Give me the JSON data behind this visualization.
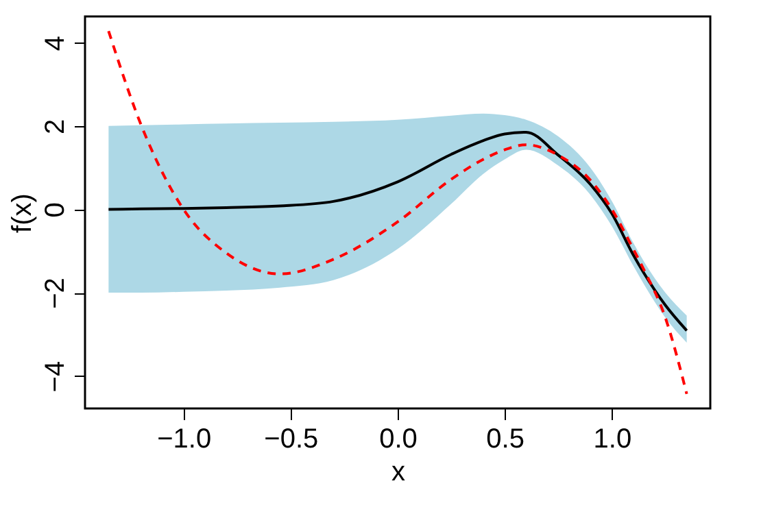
{
  "chart_data": {
    "type": "line",
    "xlabel": "x",
    "ylabel": "f(x)",
    "x": [
      -1.35,
      -1.2,
      -1.0,
      -0.8,
      -0.55,
      -0.3,
      0,
      0.25,
      0.4,
      0.5,
      0.6,
      0.75,
      0.9,
      1.0,
      1.1,
      1.15,
      1.25,
      1.35
    ],
    "series": [
      {
        "color": "#000000",
        "line_style": "solid",
        "values": [
          0,
          0.01,
          0.02,
          0.04,
          0.08,
          0.19,
          0.66,
          1.32,
          1.65,
          1.81,
          1.85,
          1.3,
          0.6,
          -0.1,
          -1.09,
          -1.53,
          -2.3,
          -2.91
        ],
        "lower": [
          -2.0,
          -2.0,
          -1.98,
          -1.95,
          -1.88,
          -1.7,
          -0.95,
          0.13,
          0.85,
          1.2,
          1.43,
          1.05,
          0.35,
          -0.4,
          -1.35,
          -1.8,
          -2.6,
          -3.2
        ],
        "upper": [
          2.0,
          2.02,
          2.04,
          2.06,
          2.08,
          2.1,
          2.15,
          2.25,
          2.3,
          2.26,
          2.15,
          1.75,
          1.0,
          0.2,
          -0.8,
          -1.25,
          -2.0,
          -2.55
        ]
      },
      {
        "color": "#ff0000",
        "line_style": "dashed",
        "values": [
          4.28,
          2.05,
          0,
          -1.05,
          -1.55,
          -1.2,
          -0.3,
          0.72,
          1.2,
          1.43,
          1.55,
          1.3,
          0.7,
          0.0,
          -0.95,
          -1.45,
          -2.6,
          -4.43
        ]
      }
    ],
    "xlim": [
      -1.46,
      1.46
    ],
    "ylim": [
      -4.78,
      4.63
    ],
    "xticks": [
      {
        "value": -1.0,
        "label": "−1.0"
      },
      {
        "value": -0.5,
        "label": "−0.5"
      },
      {
        "value": 0,
        "label": "0.0"
      },
      {
        "value": 0.5,
        "label": "0.5"
      },
      {
        "value": 1.0,
        "label": "1.0"
      }
    ],
    "yticks": [
      {
        "value": -4,
        "label": "−4"
      },
      {
        "value": -2,
        "label": "−2"
      },
      0,
      2,
      4
    ],
    "marker": "none"
  }
}
